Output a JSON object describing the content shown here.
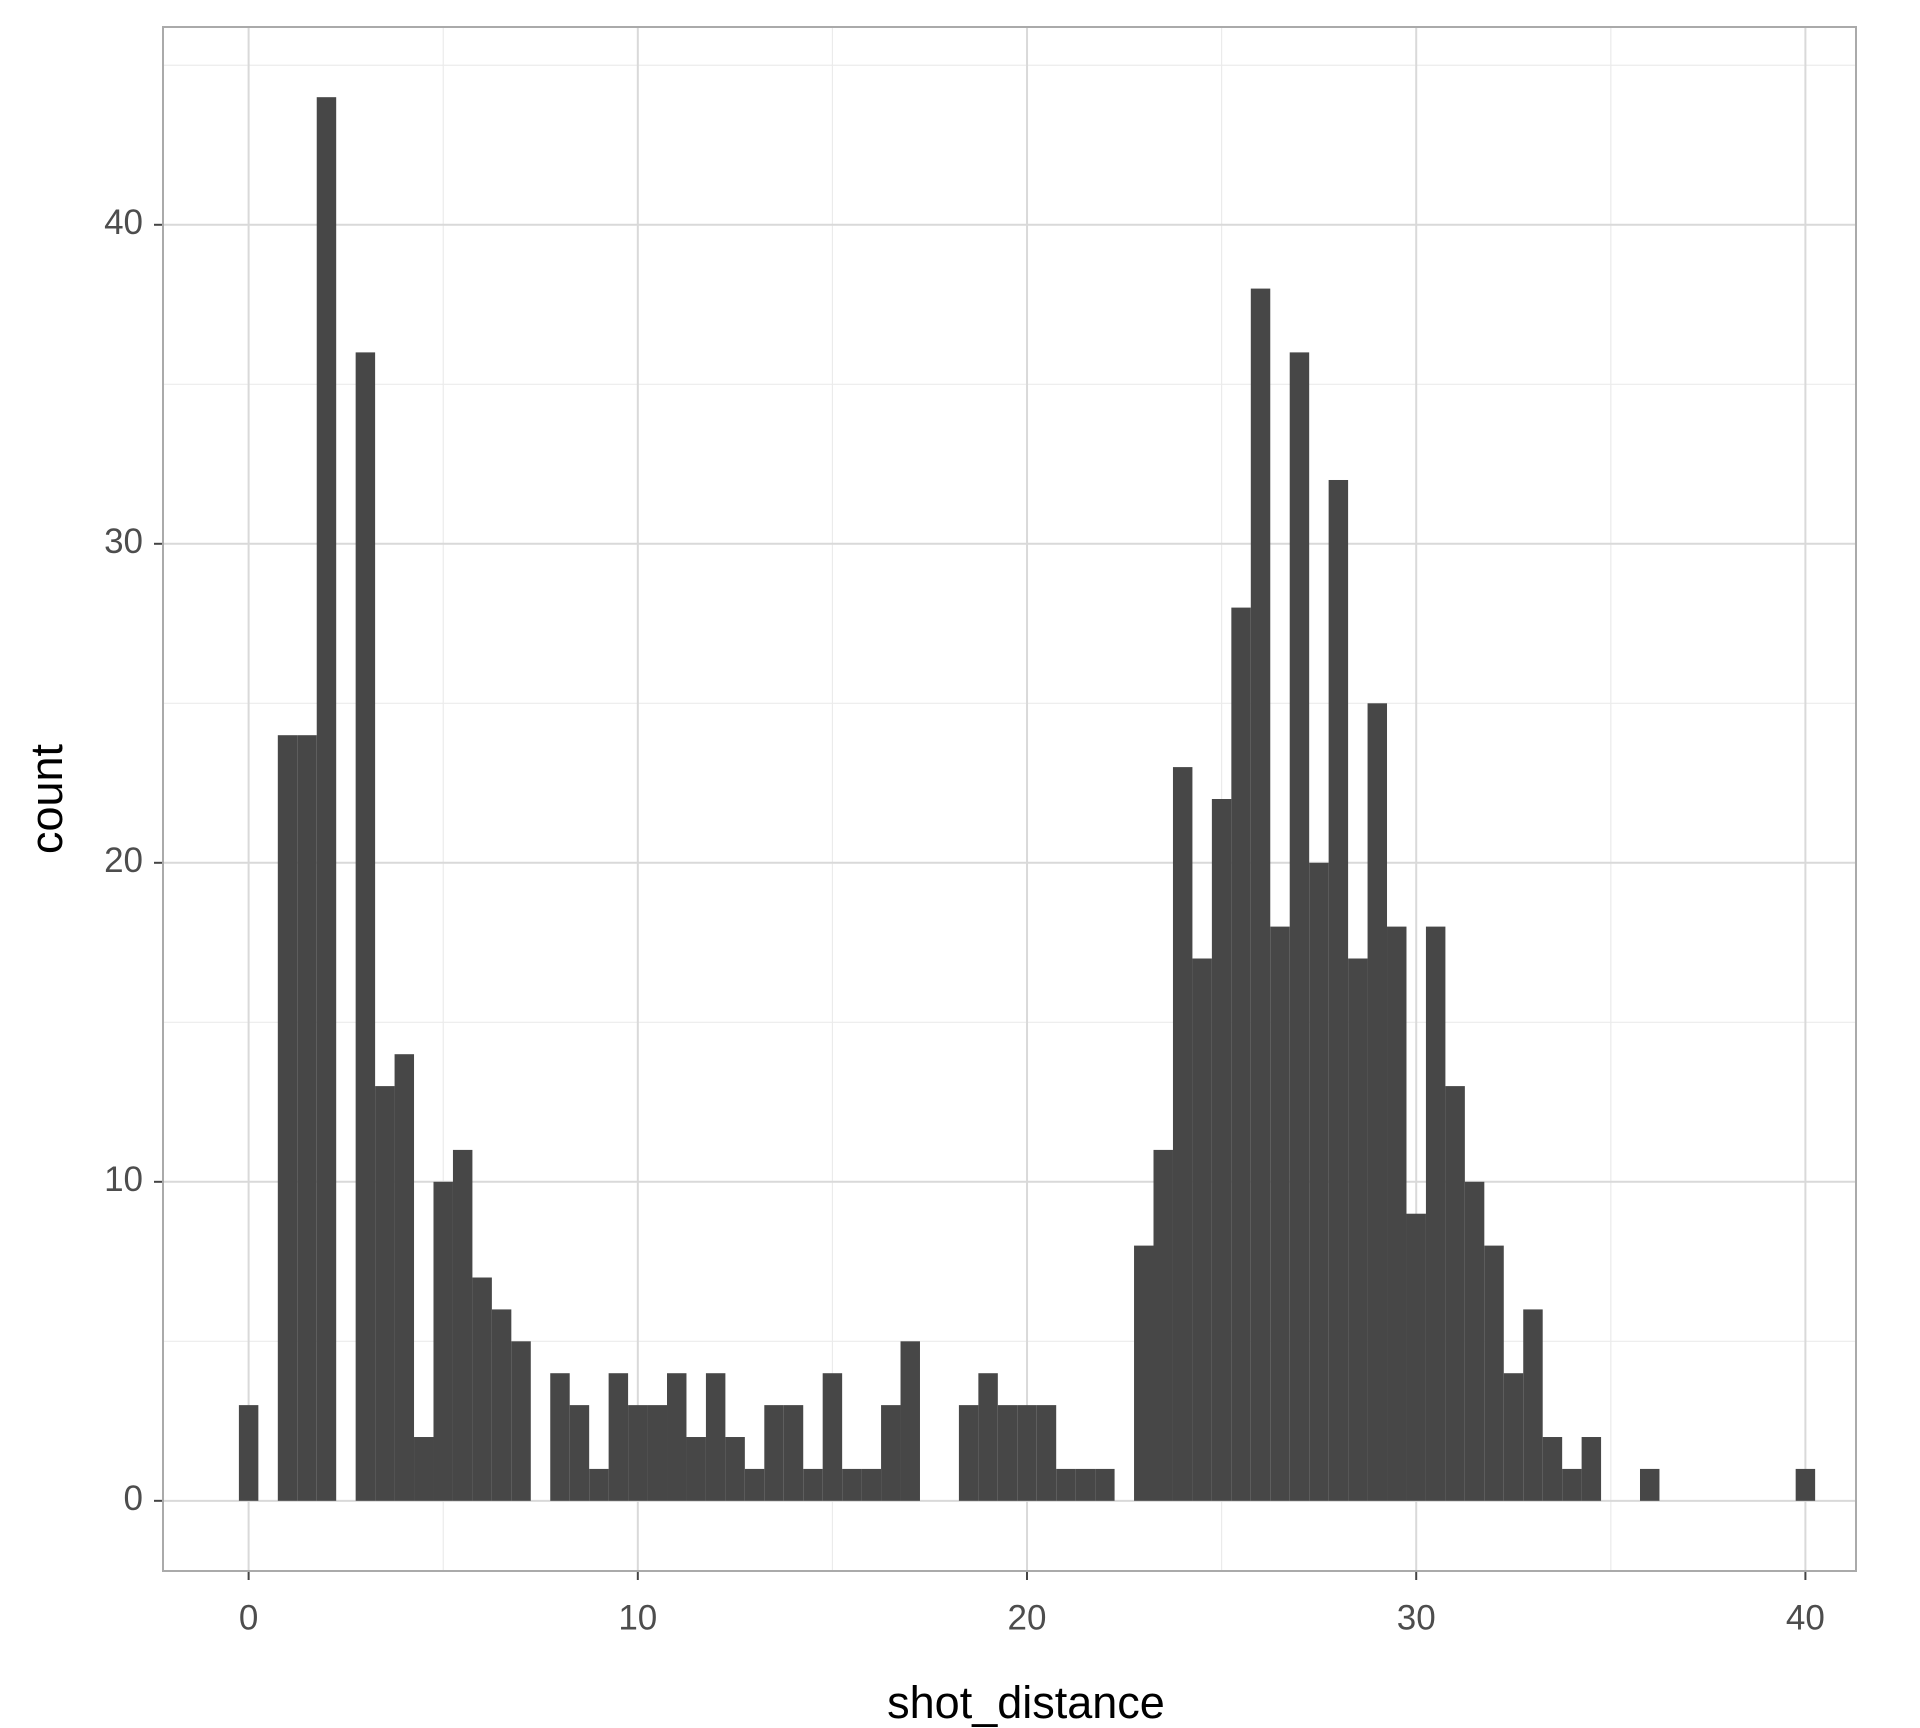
{
  "chart_data": {
    "type": "histogram",
    "xlabel": "shot_distance",
    "ylabel": "count",
    "bins": [
      -0.25,
      0.25,
      0.75,
      1.25,
      1.75,
      2.25,
      2.75,
      3.25,
      3.75,
      4.25,
      4.75,
      5.25,
      5.75,
      6.25,
      6.75,
      7.25,
      7.75,
      8.25,
      8.75,
      9.25,
      9.75,
      10.25,
      10.75,
      11.25,
      11.75,
      12.25,
      12.75,
      13.25,
      13.75,
      14.25,
      14.75,
      15.25,
      15.75,
      16.25,
      16.75,
      17.25,
      17.75,
      18.25,
      18.75,
      19.25,
      19.75,
      20.25,
      20.75,
      21.25,
      21.75,
      22.25,
      22.75,
      23.25,
      23.75,
      24.25,
      24.75,
      25.25,
      25.75,
      26.25,
      26.75,
      27.25,
      27.75,
      28.25,
      28.75,
      29.25,
      29.75,
      30.25,
      30.75,
      31.25,
      31.75,
      32.25,
      32.75,
      33.25,
      33.75,
      34.25,
      34.75,
      35.25,
      35.75,
      36.25,
      36.75,
      37.25,
      37.75,
      38.25,
      38.75,
      39.25,
      39.75,
      40.25
    ],
    "values": [
      3,
      0,
      24,
      24,
      44,
      0,
      36,
      13,
      14,
      2,
      10,
      11,
      7,
      6,
      5,
      0,
      4,
      3,
      1,
      4,
      3,
      3,
      4,
      2,
      4,
      2,
      1,
      3,
      3,
      1,
      4,
      1,
      1,
      3,
      5,
      0,
      0,
      3,
      4,
      3,
      3,
      3,
      1,
      1,
      1,
      0,
      8,
      11,
      23,
      17,
      22,
      28,
      38,
      18,
      36,
      20,
      32,
      17,
      25,
      18,
      9,
      18,
      13,
      10,
      8,
      4,
      6,
      2,
      1,
      2,
      0,
      0,
      1,
      0,
      0,
      0,
      0,
      0,
      0,
      0,
      1
    ],
    "color": "#474747",
    "xlim": [
      -2.2,
      41.3
    ],
    "ylim": [
      -2.2,
      46.2
    ],
    "xticks": [
      0,
      10,
      20,
      30,
      40
    ],
    "yticks": [
      0,
      10,
      20,
      30,
      40
    ],
    "x_minor_ticks": [
      5,
      15,
      25,
      35
    ],
    "y_minor_ticks": [
      5,
      15,
      25,
      35,
      45
    ],
    "grid": true
  }
}
